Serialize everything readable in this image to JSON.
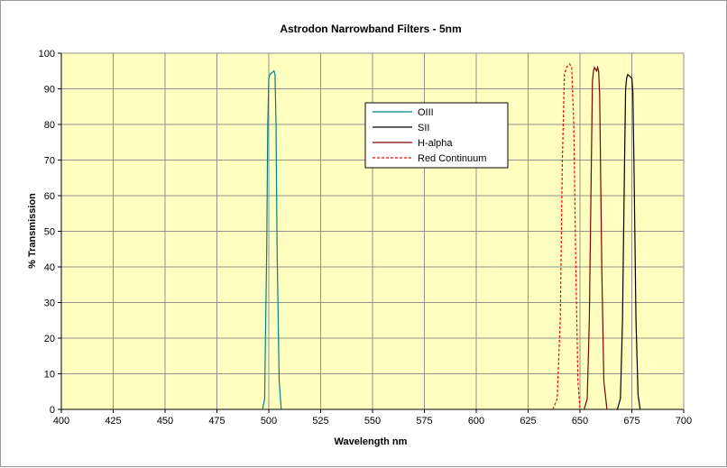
{
  "chart_data": {
    "type": "line",
    "title": "Astrodon Narrowband Filters - 5nm",
    "xlabel": "Wavelength nm",
    "ylabel": "% Transmission",
    "xlim": [
      400,
      700
    ],
    "ylim": [
      0,
      100
    ],
    "x_ticks": [
      400,
      425,
      450,
      475,
      500,
      525,
      550,
      575,
      600,
      625,
      650,
      675,
      700
    ],
    "y_ticks": [
      0,
      10,
      20,
      30,
      40,
      50,
      60,
      70,
      80,
      90,
      100
    ],
    "grid": true,
    "legend_position": "top-center",
    "plot_background": "#ffffc0",
    "series": [
      {
        "name": "OIII",
        "color": "#008080",
        "dash": "solid",
        "points": [
          [
            497.0,
            0
          ],
          [
            498.0,
            3
          ],
          [
            499.0,
            45
          ],
          [
            499.5,
            80
          ],
          [
            500.0,
            93
          ],
          [
            500.5,
            94
          ],
          [
            501.5,
            94.5
          ],
          [
            502.5,
            95
          ],
          [
            503.0,
            94
          ],
          [
            503.5,
            80
          ],
          [
            504.0,
            45
          ],
          [
            505.0,
            8
          ],
          [
            506.0,
            0
          ]
        ]
      },
      {
        "name": "SII",
        "color": "#000000",
        "dash": "solid",
        "points": [
          [
            668.0,
            0
          ],
          [
            669.5,
            3
          ],
          [
            670.5,
            25
          ],
          [
            671.5,
            70
          ],
          [
            672.0,
            90
          ],
          [
            672.5,
            93
          ],
          [
            673.0,
            94
          ],
          [
            674.0,
            93.5
          ],
          [
            675.0,
            93
          ],
          [
            675.5,
            89
          ],
          [
            676.0,
            70
          ],
          [
            677.0,
            25
          ],
          [
            678.0,
            4
          ],
          [
            679.0,
            0
          ]
        ]
      },
      {
        "name": "H-alpha",
        "color": "#800000",
        "dash": "solid",
        "points": [
          [
            652.0,
            0
          ],
          [
            653.5,
            3
          ],
          [
            654.5,
            25
          ],
          [
            655.5,
            70
          ],
          [
            656.0,
            92
          ],
          [
            656.5,
            95
          ],
          [
            657.0,
            96
          ],
          [
            658.0,
            95
          ],
          [
            658.5,
            96
          ],
          [
            659.0,
            95
          ],
          [
            659.5,
            88
          ],
          [
            660.5,
            40
          ],
          [
            661.5,
            8
          ],
          [
            663.0,
            0
          ]
        ]
      },
      {
        "name": "Red Continuum",
        "color": "#ff0000",
        "dash": "dashed",
        "points": [
          [
            637.0,
            0
          ],
          [
            639.0,
            3
          ],
          [
            640.5,
            25
          ],
          [
            641.5,
            70
          ],
          [
            642.5,
            94
          ],
          [
            643.5,
            96
          ],
          [
            645.0,
            97
          ],
          [
            646.0,
            96
          ],
          [
            647.0,
            80
          ],
          [
            648.0,
            40
          ],
          [
            649.0,
            8
          ],
          [
            650.0,
            0
          ]
        ]
      }
    ]
  }
}
